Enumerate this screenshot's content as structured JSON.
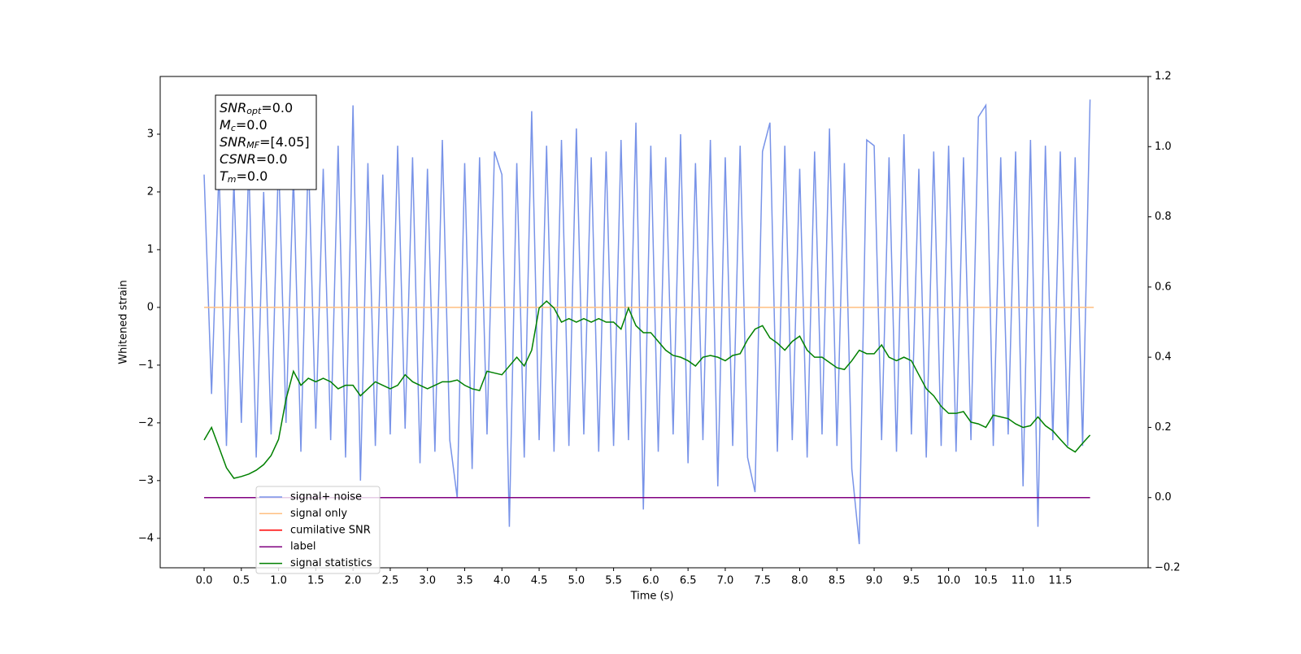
{
  "chart_data": {
    "type": "line",
    "xlabel": "Time (s)",
    "ylabel": "Whitened strain",
    "x": [
      0,
      0.1,
      0.2,
      0.3,
      0.4,
      0.5,
      0.6,
      0.7,
      0.8,
      0.9,
      1,
      1.1,
      1.2,
      1.3,
      1.4,
      1.5,
      1.6,
      1.7,
      1.8,
      1.9,
      2,
      2.1,
      2.2,
      2.3,
      2.4,
      2.5,
      2.6,
      2.7,
      2.8,
      2.9,
      3,
      3.1,
      3.2,
      3.3,
      3.4,
      3.5,
      3.6,
      3.7,
      3.8,
      3.9,
      4,
      4.1,
      4.2,
      4.3,
      4.4,
      4.5,
      4.6,
      4.7,
      4.8,
      4.9,
      5,
      5.1,
      5.2,
      5.3,
      5.4,
      5.5,
      5.6,
      5.7,
      5.8,
      5.9,
      6,
      6.1,
      6.2,
      6.3,
      6.4,
      6.5,
      6.6,
      6.7,
      6.8,
      6.9,
      7,
      7.1,
      7.2,
      7.3,
      7.4,
      7.5,
      7.6,
      7.7,
      7.8,
      7.9,
      8,
      8.1,
      8.2,
      8.3,
      8.4,
      8.5,
      8.6,
      8.7,
      8.8,
      8.9,
      9,
      9.1,
      9.2,
      9.3,
      9.4,
      9.5,
      9.6,
      9.7,
      9.8,
      9.9,
      10,
      10.1,
      10.2,
      10.3,
      10.4,
      10.5,
      10.6,
      10.7,
      10.8,
      10.9,
      11,
      11.1,
      11.2,
      11.3,
      11.4,
      11.5,
      11.6,
      11.7,
      11.8,
      11.9
    ],
    "series": [
      {
        "name": "signal+ noise",
        "color": "#7893e8",
        "values": [
          2.3,
          -1.5,
          2.4,
          -2.4,
          2.2,
          -2.0,
          2.5,
          -2.6,
          2.0,
          -2.2,
          2.6,
          -2.0,
          2.3,
          -2.5,
          2.7,
          -2.1,
          2.4,
          -2.3,
          2.8,
          -2.6,
          3.5,
          -3.0,
          2.5,
          -2.4,
          2.3,
          -2.2,
          2.8,
          -2.1,
          2.6,
          -2.7,
          2.4,
          -2.5,
          2.9,
          -2.3,
          -3.3,
          2.5,
          -2.8,
          2.6,
          -2.2,
          2.7,
          2.3,
          -3.8,
          2.5,
          -2.6,
          3.4,
          -2.3,
          2.8,
          -2.5,
          2.9,
          -2.4,
          3.1,
          -2.2,
          2.6,
          -2.5,
          2.7,
          -2.4,
          2.9,
          -2.3,
          3.2,
          -3.5,
          2.8,
          -2.5,
          2.6,
          -2.2,
          3.0,
          -2.7,
          2.5,
          -2.3,
          2.9,
          -3.1,
          2.6,
          -2.4,
          2.8,
          -2.6,
          -3.2,
          2.7,
          3.2,
          -2.5,
          2.8,
          -2.3,
          2.4,
          -2.6,
          2.7,
          -2.2,
          3.1,
          -2.4,
          2.5,
          -2.8,
          -4.1,
          2.9,
          2.8,
          -2.3,
          2.6,
          -2.5,
          3.0,
          -2.2,
          2.4,
          -2.6,
          2.7,
          -2.4,
          2.8,
          -2.5,
          2.6,
          -2.3,
          3.3,
          3.5,
          -2.4,
          2.6,
          -2.2,
          2.7,
          -3.1,
          2.9,
          -3.8,
          2.8,
          -2.3,
          2.7,
          -2.4,
          2.6,
          -2.4,
          3.6
        ]
      },
      {
        "name": "signal only",
        "color": "#ffbf80",
        "x": [
          0,
          11.95
        ],
        "values": [
          0,
          0
        ]
      },
      {
        "name": "cumilative SNR",
        "color": "red"
      },
      {
        "name": "label",
        "color": "purple",
        "axis": "y2",
        "x": [
          0,
          11.9
        ],
        "values": [
          0,
          0
        ]
      },
      {
        "name": "signal statistics",
        "color": "green",
        "axis": "y2",
        "values": [
          0.164,
          0.2,
          0.143,
          0.085,
          0.055,
          0.06,
          0.067,
          0.078,
          0.094,
          0.12,
          0.166,
          0.28,
          0.36,
          0.32,
          0.34,
          0.33,
          0.34,
          0.33,
          0.31,
          0.32,
          0.32,
          0.29,
          0.31,
          0.33,
          0.32,
          0.31,
          0.32,
          0.35,
          0.33,
          0.32,
          0.31,
          0.32,
          0.33,
          0.33,
          0.335,
          0.32,
          0.31,
          0.305,
          0.36,
          0.355,
          0.35,
          0.375,
          0.4,
          0.375,
          0.42,
          0.54,
          0.56,
          0.54,
          0.5,
          0.51,
          0.5,
          0.51,
          0.5,
          0.51,
          0.5,
          0.5,
          0.48,
          0.54,
          0.49,
          0.47,
          0.47,
          0.445,
          0.42,
          0.405,
          0.4,
          0.39,
          0.375,
          0.4,
          0.405,
          0.4,
          0.39,
          0.405,
          0.41,
          0.45,
          0.48,
          0.49,
          0.455,
          0.44,
          0.42,
          0.445,
          0.46,
          0.42,
          0.4,
          0.4,
          0.385,
          0.37,
          0.365,
          0.39,
          0.42,
          0.41,
          0.41,
          0.435,
          0.4,
          0.39,
          0.4,
          0.39,
          0.35,
          0.31,
          0.29,
          0.26,
          0.24,
          0.24,
          0.245,
          0.215,
          0.21,
          0.2,
          0.235,
          0.23,
          0.225,
          0.21,
          0.2,
          0.205,
          0.23,
          0.205,
          0.19,
          0.166,
          0.143,
          0.13,
          0.155,
          0.178
        ]
      }
    ],
    "xlim": [
      -0.59,
      12.68
    ],
    "ylim": [
      -4.51,
      4.0
    ],
    "y2lim": [
      -0.2,
      1.2
    ],
    "xticks": [
      {
        "value": 0,
        "label": "0.0"
      },
      {
        "value": 0.5,
        "label": "0.5"
      },
      {
        "value": 1,
        "label": "1.0"
      },
      {
        "value": 1.5,
        "label": "1.5"
      },
      {
        "value": 2,
        "label": "2.0"
      },
      {
        "value": 2.5,
        "label": "2.5"
      },
      {
        "value": 3,
        "label": "3.0"
      },
      {
        "value": 3.5,
        "label": "3.5"
      },
      {
        "value": 4,
        "label": "4.0"
      },
      {
        "value": 4.5,
        "label": "4.5"
      },
      {
        "value": 5,
        "label": "5.0"
      },
      {
        "value": 5.5,
        "label": "5.5"
      },
      {
        "value": 6,
        "label": "6.0"
      },
      {
        "value": 6.5,
        "label": "6.5"
      },
      {
        "value": 7,
        "label": "7.0"
      },
      {
        "value": 7.5,
        "label": "7.5"
      },
      {
        "value": 8,
        "label": "8.0"
      },
      {
        "value": 8.5,
        "label": "8.5"
      },
      {
        "value": 9,
        "label": "9.0"
      },
      {
        "value": 9.5,
        "label": "9.5"
      },
      {
        "value": 10,
        "label": "10.0"
      },
      {
        "value": 10.5,
        "label": "10.5"
      },
      {
        "value": 11,
        "label": "11.0"
      },
      {
        "value": 11.5,
        "label": "11.5"
      }
    ],
    "yticks": [
      {
        "value": -4,
        "label": "−4"
      },
      {
        "value": -3,
        "label": "−3"
      },
      {
        "value": -2,
        "label": "−2"
      },
      {
        "value": -1,
        "label": "−1"
      },
      0,
      1,
      2,
      3
    ],
    "y2ticks": [
      {
        "value": -0.2,
        "label": "−0.2"
      },
      {
        "value": 0,
        "label": "0.0"
      },
      {
        "value": 0.2,
        "label": "0.2"
      },
      {
        "value": 0.4,
        "label": "0.4"
      },
      {
        "value": 0.6,
        "label": "0.6"
      },
      {
        "value": 0.8,
        "label": "0.8"
      },
      {
        "value": 1,
        "label": "1.0"
      },
      {
        "value": 1.2,
        "label": "1.2"
      }
    ],
    "legend": "lower left",
    "grid": false,
    "annotations": [
      {
        "symbol": "SNR",
        "sub": "opt",
        "text": "=0.0"
      },
      {
        "symbol": "M",
        "sub": "c",
        "text": "=0.0"
      },
      {
        "symbol": "SNR",
        "sub": "MF",
        "text": "=[4.05]"
      },
      {
        "symbol": "CSNR",
        "text": "=0.0"
      },
      {
        "symbol": "T",
        "sub": "m",
        "text": "=0.0"
      }
    ]
  }
}
